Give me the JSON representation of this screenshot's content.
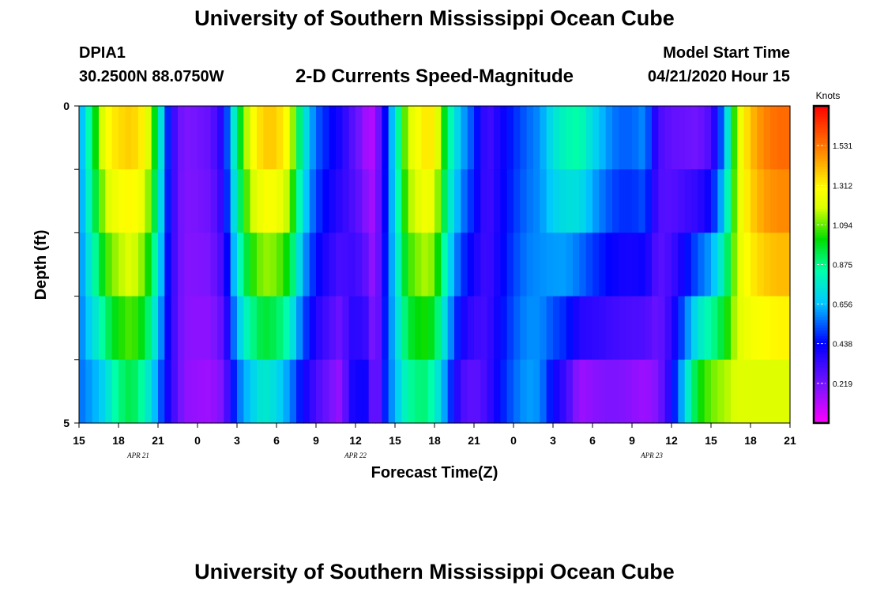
{
  "header": {
    "title": "University of Southern Mississippi Ocean Cube",
    "station": "DPIA1",
    "coordinates": "30.2500N 88.0750W",
    "subtitle": "2-D Currents Speed-Magnitude",
    "model_start_label": "Model Start Time",
    "model_start_value": "04/21/2020 Hour 15"
  },
  "footer": {
    "title": "University of Southern Mississippi Ocean Cube"
  },
  "chart_data": {
    "type": "heatmap",
    "title": "2-D Currents Speed-Magnitude",
    "xlabel": "Forecast Time(Z)",
    "ylabel": "Depth (ft)",
    "colorbar_label": "Knots",
    "colorbar_range": [
      0,
      1.75
    ],
    "colorbar_ticks": [
      "1.531",
      "1.312",
      "1.094",
      "0.875",
      "0.656",
      "0.438",
      "0.219"
    ],
    "colorbar_tick_values": [
      1.531,
      1.312,
      1.094,
      0.875,
      0.656,
      0.438,
      0.219
    ],
    "x_range_hours": [
      0,
      54
    ],
    "y_range_ft": [
      0,
      5
    ],
    "y_tick_labels": [
      "0",
      "5"
    ],
    "x_tick_hours": [
      0,
      3,
      6,
      9,
      12,
      15,
      18,
      21,
      24,
      27,
      30,
      33,
      36,
      39,
      42,
      45,
      48,
      51,
      54
    ],
    "x_tick_labels": [
      "15",
      "18",
      "21",
      "0",
      "3",
      "6",
      "9",
      "12",
      "15",
      "18",
      "21",
      "0",
      "3",
      "6",
      "9",
      "12",
      "15",
      "18",
      "21"
    ],
    "date_labels": [
      {
        "text": "APR  21",
        "hour": 4.5
      },
      {
        "text": "APR  22",
        "hour": 21
      },
      {
        "text": "APR  23",
        "hour": 43.5
      }
    ],
    "depth_layers": 5,
    "profile_hours": [
      0,
      0.5,
      1,
      2,
      3,
      4,
      5,
      6,
      6.5,
      7,
      7.5,
      8,
      9,
      10,
      11,
      12,
      13,
      14,
      15,
      16,
      17,
      18,
      19,
      20,
      20.5,
      21,
      21.5,
      22,
      22.5,
      23,
      23.5,
      24,
      25,
      26,
      26.5,
      27,
      27.5,
      28,
      29,
      30,
      30.5,
      31,
      32,
      33,
      34,
      35,
      36,
      37,
      38,
      39,
      40,
      41,
      42,
      43,
      44,
      45,
      46,
      47,
      48,
      49,
      50,
      51,
      52,
      53,
      54
    ],
    "surface_speed": [
      0.58,
      0.75,
      0.92,
      1.28,
      1.35,
      1.38,
      1.3,
      0.9,
      0.58,
      0.38,
      0.25,
      0.2,
      0.22,
      0.25,
      0.4,
      0.9,
      1.25,
      1.38,
      1.38,
      1.25,
      0.78,
      0.55,
      0.45,
      0.38,
      0.3,
      0.25,
      0.2,
      0.1,
      0.15,
      0.32,
      0.55,
      0.75,
      1.2,
      1.3,
      1.35,
      1.3,
      1.1,
      0.88,
      0.65,
      0.5,
      0.4,
      0.3,
      0.4,
      0.48,
      0.55,
      0.6,
      0.75,
      0.82,
      0.85,
      0.72,
      0.62,
      0.55,
      0.55,
      0.6,
      0.3,
      0.25,
      0.24,
      0.22,
      0.3,
      0.6,
      1.2,
      1.4,
      1.5,
      1.55,
      1.55
    ],
    "bottom_speed": [
      0.55,
      0.6,
      0.62,
      0.72,
      0.88,
      0.95,
      0.82,
      0.6,
      0.45,
      0.35,
      0.25,
      0.18,
      0.16,
      0.15,
      0.22,
      0.55,
      0.68,
      0.78,
      0.72,
      0.6,
      0.42,
      0.3,
      0.22,
      0.15,
      0.38,
      0.4,
      0.42,
      0.4,
      0.12,
      0.4,
      0.55,
      0.65,
      0.85,
      0.9,
      0.88,
      0.8,
      0.7,
      0.55,
      0.3,
      0.25,
      0.28,
      0.32,
      0.45,
      0.55,
      0.62,
      0.6,
      0.42,
      0.32,
      0.15,
      0.18,
      0.2,
      0.2,
      0.18,
      0.15,
      0.2,
      0.4,
      0.7,
      1.0,
      1.1,
      1.15,
      1.2,
      1.2,
      1.2,
      1.2,
      1.2
    ]
  }
}
